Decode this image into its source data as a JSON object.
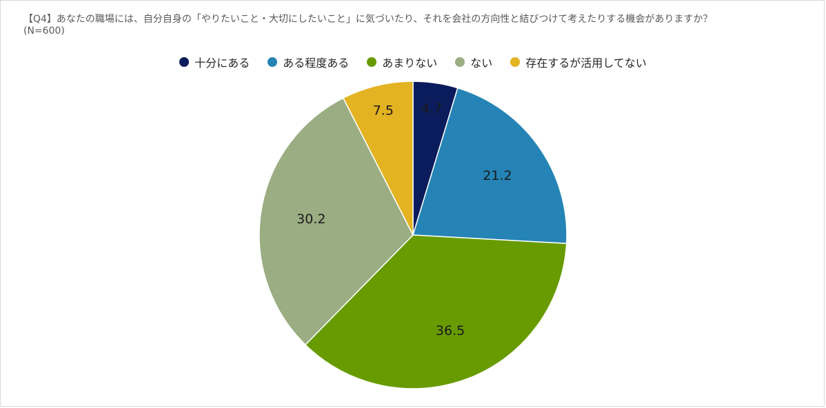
{
  "chart_data": {
    "type": "pie",
    "title": "【Q4】あなたの職場には、自分自身の「やりたいこと・大切にしたいこと」に気づいたり、それを会社の方向性と結びつけて考えたりする機会がありますか？",
    "subtitle": "(N=600)",
    "legend_position": "top",
    "slices": [
      {
        "label": "十分にある",
        "value": 4.7,
        "color": "#0b1c5c"
      },
      {
        "label": "ある程度ある",
        "value": 21.2,
        "color": "#2584b5"
      },
      {
        "label": "あまりない",
        "value": 36.5,
        "color": "#679b00"
      },
      {
        "label": "ない",
        "value": 30.2,
        "color": "#9bad83"
      },
      {
        "label": "存在するが活用してない",
        "value": 7.5,
        "color": "#e3b321"
      }
    ]
  }
}
